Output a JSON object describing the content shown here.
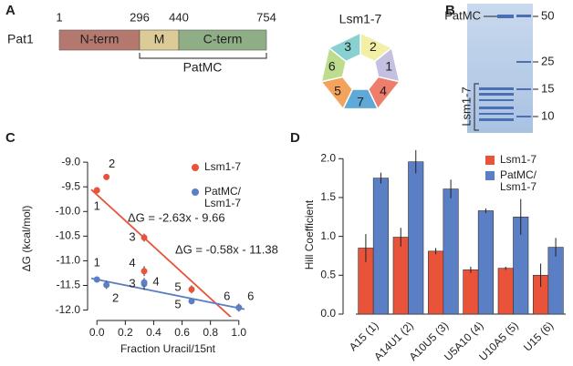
{
  "panel_labels": [
    "A",
    "B",
    "C",
    "D"
  ],
  "domain_map": {
    "protein": "Pat1",
    "positions": [
      "1",
      "296",
      "440",
      "754"
    ],
    "domains": [
      {
        "label": "N-term",
        "color": "#b5786e"
      },
      {
        "label": "M",
        "color": "#dccb97"
      },
      {
        "label": "C-term",
        "color": "#8fae86"
      }
    ],
    "bracket_label": "PatMC"
  },
  "ring": {
    "title": "Lsm1-7",
    "subunits": [
      {
        "label": "2",
        "color": "#f4efa6"
      },
      {
        "label": "1",
        "color": "#c4c0e2"
      },
      {
        "label": "4",
        "color": "#ee7d6c"
      },
      {
        "label": "7",
        "color": "#5ea9d8"
      },
      {
        "label": "5",
        "color": "#f3a35b"
      },
      {
        "label": "6",
        "color": "#bcdc8e"
      },
      {
        "label": "3",
        "color": "#88d1d0"
      }
    ]
  },
  "gel": {
    "band_label": "PatMC",
    "lane_label": "Lsm1-7",
    "markers": [
      "50",
      "25",
      "15",
      "10"
    ]
  },
  "chart_data": [
    {
      "type": "scatter",
      "xlabel": "Fraction Uracil/15nt",
      "ylabel": "ΔG (kcal/mol)",
      "xlim": [
        -0.04,
        1.04
      ],
      "ylim": [
        -12.1,
        -8.85
      ],
      "xticks": [
        {
          "value": 0,
          "label": "0.0"
        },
        0.2,
        0.4,
        0.6,
        0.8,
        {
          "value": 1,
          "label": "1.0"
        }
      ],
      "yticks": [
        {
          "value": -9,
          "label": "-9.0"
        },
        -9.5,
        {
          "value": -10,
          "label": "-10.0"
        },
        -10.5,
        {
          "value": -11,
          "label": "-11.0"
        },
        -11.5,
        {
          "value": -12,
          "label": "-12.0"
        }
      ],
      "series": [
        {
          "name": "Lsm1-7",
          "color": "#e8533a",
          "x": [
            0,
            0.067,
            0.333,
            0.333,
            0.667,
            1.0
          ],
          "values": [
            -9.57,
            -9.3,
            -10.53,
            -11.21,
            -11.58,
            -11.95
          ],
          "errors": [
            0.06,
            0.06,
            0.08,
            0.1,
            0.08,
            0.06
          ],
          "point_labels": [
            "1",
            "2",
            "3",
            "4",
            "5",
            "6"
          ],
          "fit": {
            "slope": -2.63,
            "intercept": -9.66,
            "label": "ΔG = -2.63x - 9.66"
          }
        },
        {
          "name": "PatMC/ Lsm1-7",
          "color": "#5b7fc4",
          "x": [
            0,
            0.067,
            0.333,
            0.333,
            0.667,
            1.0
          ],
          "values": [
            -11.38,
            -11.49,
            -11.47,
            -11.44,
            -11.82,
            -11.95
          ],
          "errors": [
            0.06,
            0.08,
            0.12,
            0.08,
            0.06,
            0.08
          ],
          "point_labels": [
            "1",
            "2",
            "3",
            "4",
            "5",
            "6"
          ],
          "fit": {
            "slope": -0.58,
            "intercept": -11.38,
            "label": "ΔG = -0.58x - 11.38"
          }
        }
      ]
    },
    {
      "type": "bar",
      "ylabel": "Hill Coefficient",
      "categories": [
        "A15 (1)",
        "A14U1 (2)",
        "A10U5 (3)",
        "U5A10 (4)",
        "U10A5 (5)",
        "U15 (6)"
      ],
      "ylim": [
        0,
        2.05
      ],
      "yticks": [
        {
          "value": 0,
          "label": "0.0"
        },
        0.5,
        {
          "value": 1,
          "label": "1.0"
        },
        1.5,
        {
          "value": 2,
          "label": "2.0"
        }
      ],
      "series": [
        {
          "name": "Lsm1-7",
          "color": "#e8533a",
          "values": [
            0.85,
            0.99,
            0.81,
            0.57,
            0.59,
            0.5
          ],
          "errors": [
            0.18,
            0.12,
            0.04,
            0.04,
            0.02,
            0.15
          ]
        },
        {
          "name": "PatMC/ Lsm1-7",
          "color": "#5b7fc4",
          "values": [
            1.75,
            1.96,
            1.61,
            1.33,
            1.25,
            0.86
          ],
          "errors": [
            0.07,
            0.15,
            0.12,
            0.03,
            0.23,
            0.12
          ]
        }
      ]
    }
  ]
}
